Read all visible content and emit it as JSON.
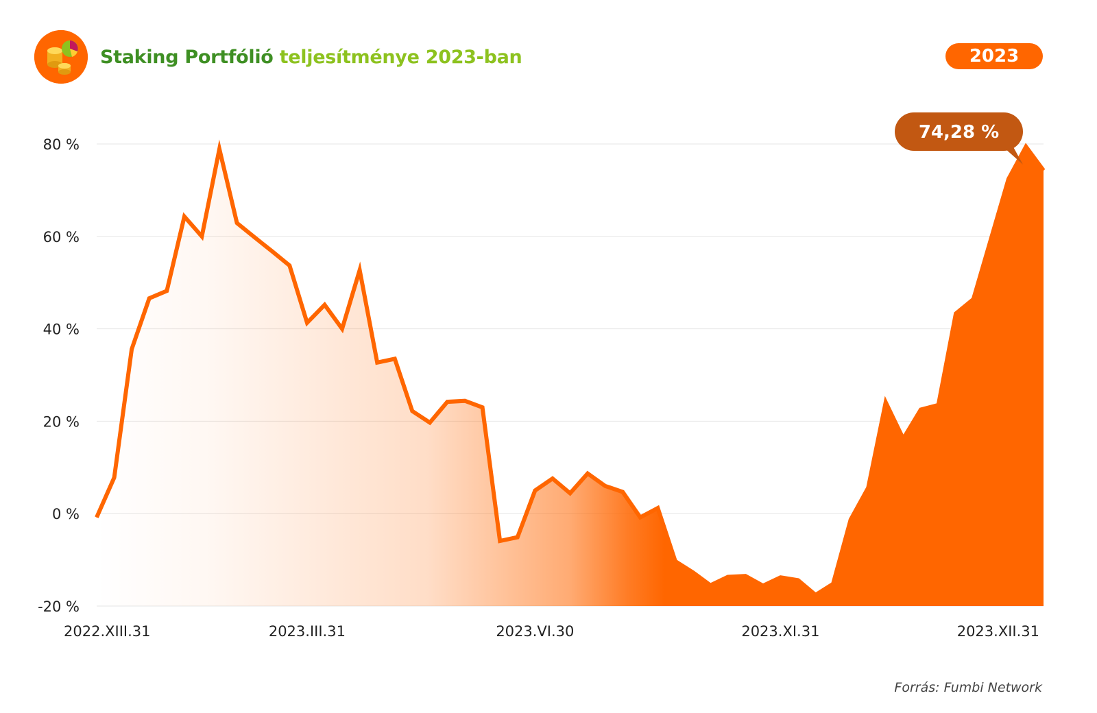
{
  "header": {
    "title_part1": "Staking Portfólió",
    "title_part2": "teljesítménye 2023-ban",
    "year_badge": "2023",
    "logo_icon": "coins-pie-chart-icon"
  },
  "source_text": "Forrás: Fumbi Network",
  "colors": {
    "accent": "#ff6600",
    "callout": "#c25812",
    "title_dark_green": "#3e8f23",
    "title_light_green": "#8dc21f"
  },
  "chart_data": {
    "type": "area",
    "title": "",
    "xlabel": "",
    "ylabel": "",
    "ylim": [
      -20,
      80
    ],
    "yticks": [
      -20,
      0,
      20,
      40,
      60,
      80
    ],
    "ytick_labels": [
      "-20 %",
      "0 %",
      "20 %",
      "40 %",
      "60 %",
      "80 %"
    ],
    "xtick_labels": [
      "2022.XIII.31",
      "2023.III.31",
      "2023.VI.30",
      "2023.XI.31",
      "2023.XII.31"
    ],
    "xtick_index": [
      0,
      12,
      25,
      39,
      53
    ],
    "grid": true,
    "legend": "none",
    "series": [
      {
        "values": [
          -0.8,
          7.8,
          35.6,
          46.6,
          48.2,
          64.3,
          60.0,
          78.9,
          62.9,
          59.8,
          56.8,
          53.7,
          41.3,
          45.2,
          40.0,
          52.7,
          32.7,
          33.5,
          22.2,
          19.7,
          24.2,
          24.4,
          23.0,
          -5.9,
          -5.1,
          5.0,
          7.6,
          4.4,
          8.7,
          6.0,
          4.7,
          -0.8,
          1.2,
          -10.3,
          -12.7,
          -15.5,
          -13.7,
          -13.5,
          -15.6,
          -13.8,
          -14.4,
          -17.6,
          -15.2,
          -1.3,
          5.6,
          24.1,
          16.2,
          22.5,
          23.5,
          43.3,
          46.4,
          59.4,
          72.4,
          79.4,
          74.28
        ]
      }
    ],
    "final_value_label": "74,28 %"
  }
}
